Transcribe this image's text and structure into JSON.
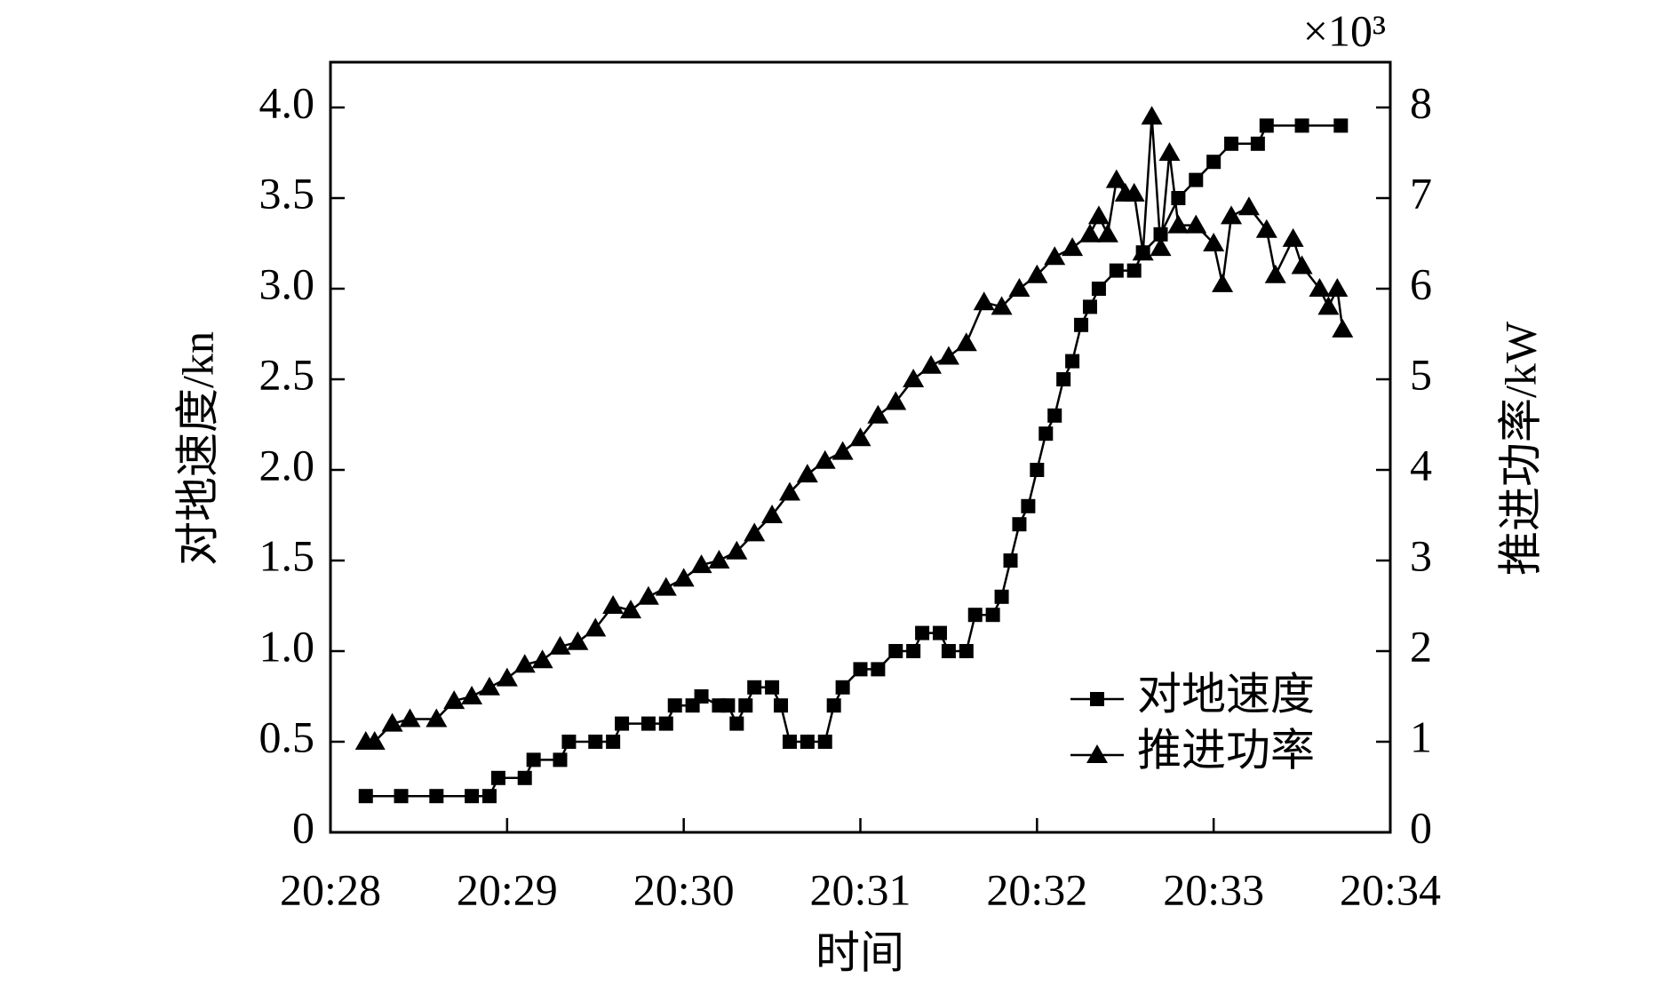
{
  "chart_data": {
    "type": "line",
    "xlabel": "时间",
    "ylabel": "对地速度/kn",
    "y2label": "推进功率/kW",
    "y2_multiplier": "×10³",
    "xlim": [
      1228,
      1234
    ],
    "xticks": [
      {
        "value": 1228,
        "label": "20:28"
      },
      {
        "value": 1229,
        "label": "20:29"
      },
      {
        "value": 1230,
        "label": "20:30"
      },
      {
        "value": 1231,
        "label": "20:31"
      },
      {
        "value": 1232,
        "label": "20:32"
      },
      {
        "value": 1233,
        "label": "20:33"
      },
      {
        "value": 1234,
        "label": "20:34"
      }
    ],
    "ylim": [
      0,
      4.25
    ],
    "yticks": [
      0,
      {
        "value": 0.5,
        "label": "0.5"
      },
      {
        "value": 1,
        "label": "1.0"
      },
      {
        "value": 1.5,
        "label": "1.5"
      },
      {
        "value": 2,
        "label": "2.0"
      },
      {
        "value": 2.5,
        "label": "2.5"
      },
      {
        "value": 3,
        "label": "3.0"
      },
      {
        "value": 3.5,
        "label": "3.5"
      },
      {
        "value": 4,
        "label": "4.0"
      }
    ],
    "y2lim": [
      0,
      8.5
    ],
    "y2ticks": [
      0,
      1,
      2,
      3,
      4,
      5,
      6,
      7,
      8
    ],
    "legend": "lower right",
    "series": [
      {
        "name": "对地速度",
        "color": "#000000",
        "marker": "square",
        "x": [
          1228.2,
          1228.4,
          1228.6,
          1228.8,
          1228.9,
          1228.95,
          1229.1,
          1229.15,
          1229.3,
          1229.35,
          1229.5,
          1229.6,
          1229.65,
          1229.8,
          1229.9,
          1229.95,
          1230.05,
          1230.1,
          1230.2,
          1230.25,
          1230.3,
          1230.35,
          1230.4,
          1230.5,
          1230.55,
          1230.6,
          1230.7,
          1230.8,
          1230.85,
          1230.9,
          1231.0,
          1231.1,
          1231.2,
          1231.3,
          1231.35,
          1231.45,
          1231.5,
          1231.6,
          1231.65,
          1231.75,
          1231.8,
          1231.85,
          1231.9,
          1231.95,
          1232.0,
          1232.05,
          1232.1,
          1232.15,
          1232.2,
          1232.25,
          1232.3,
          1232.35,
          1232.45,
          1232.55,
          1232.6,
          1232.7,
          1232.8,
          1232.9,
          1233.0,
          1233.1,
          1233.25,
          1233.3,
          1233.5,
          1233.72
        ],
        "values": [
          0.2,
          0.2,
          0.2,
          0.2,
          0.2,
          0.3,
          0.3,
          0.4,
          0.4,
          0.5,
          0.5,
          0.5,
          0.6,
          0.6,
          0.6,
          0.7,
          0.7,
          0.75,
          0.7,
          0.7,
          0.6,
          0.7,
          0.8,
          0.8,
          0.7,
          0.5,
          0.5,
          0.5,
          0.7,
          0.8,
          0.9,
          0.9,
          1.0,
          1.0,
          1.1,
          1.1,
          1.0,
          1.0,
          1.2,
          1.2,
          1.3,
          1.5,
          1.7,
          1.8,
          2.0,
          2.2,
          2.3,
          2.5,
          2.6,
          2.8,
          2.9,
          3.0,
          3.1,
          3.1,
          3.2,
          3.3,
          3.5,
          3.6,
          3.7,
          3.8,
          3.8,
          3.9,
          3.9,
          3.9
        ]
      },
      {
        "name": "推进功率",
        "color": "#000000",
        "marker": "triangle",
        "axis": "y2",
        "x": [
          1228.2,
          1228.25,
          1228.35,
          1228.45,
          1228.6,
          1228.7,
          1228.8,
          1228.9,
          1229.0,
          1229.1,
          1229.2,
          1229.3,
          1229.4,
          1229.5,
          1229.6,
          1229.7,
          1229.8,
          1229.9,
          1230.0,
          1230.1,
          1230.2,
          1230.3,
          1230.4,
          1230.5,
          1230.6,
          1230.7,
          1230.8,
          1230.9,
          1231.0,
          1231.1,
          1231.2,
          1231.3,
          1231.4,
          1231.5,
          1231.6,
          1231.7,
          1231.8,
          1231.9,
          1232.0,
          1232.1,
          1232.2,
          1232.3,
          1232.35,
          1232.4,
          1232.45,
          1232.5,
          1232.55,
          1232.6,
          1232.65,
          1232.7,
          1232.75,
          1232.8,
          1232.9,
          1233.0,
          1233.05,
          1233.1,
          1233.2,
          1233.3,
          1233.35,
          1233.45,
          1233.5,
          1233.6,
          1233.65,
          1233.7,
          1233.73
        ],
        "values": [
          1.0,
          1.0,
          1.2,
          1.25,
          1.25,
          1.45,
          1.5,
          1.6,
          1.7,
          1.85,
          1.9,
          2.05,
          2.1,
          2.25,
          2.5,
          2.45,
          2.6,
          2.7,
          2.8,
          2.95,
          3.0,
          3.1,
          3.3,
          3.5,
          3.75,
          3.95,
          4.1,
          4.2,
          4.35,
          4.6,
          4.75,
          5.0,
          5.15,
          5.25,
          5.4,
          5.85,
          5.8,
          6.0,
          6.15,
          6.35,
          6.45,
          6.6,
          6.8,
          6.6,
          7.2,
          7.05,
          7.05,
          6.4,
          7.9,
          6.45,
          7.5,
          6.7,
          6.7,
          6.5,
          6.05,
          6.8,
          6.9,
          6.65,
          6.15,
          6.55,
          6.25,
          6.0,
          5.8,
          6.0,
          5.55
        ]
      }
    ]
  }
}
